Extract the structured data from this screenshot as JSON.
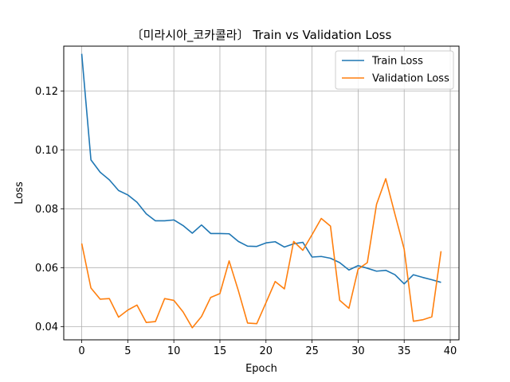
{
  "chart_data": {
    "type": "line",
    "title": "〔미라시아_코카콜라〕 Train vs Validation Loss",
    "xlabel": "Epoch",
    "ylabel": "Loss",
    "xlim": [
      -1.95,
      40.95
    ],
    "ylim": [
      0.0355,
      0.1352
    ],
    "x_ticks": [
      0,
      5,
      10,
      15,
      20,
      25,
      30,
      35,
      40
    ],
    "y_ticks": [
      0.04,
      0.06,
      0.08,
      0.1,
      0.12
    ],
    "y_tick_labels": [
      "0.04",
      "0.06",
      "0.08",
      "0.10",
      "0.12"
    ],
    "grid": true,
    "legend_position": "top-right",
    "x": [
      0,
      1,
      2,
      3,
      4,
      5,
      6,
      7,
      8,
      9,
      10,
      11,
      12,
      13,
      14,
      15,
      16,
      17,
      18,
      19,
      20,
      21,
      22,
      23,
      24,
      25,
      26,
      27,
      28,
      29,
      30,
      31,
      32,
      33,
      34,
      35,
      36,
      37,
      38,
      39
    ],
    "series": [
      {
        "name": "Train Loss",
        "color": "#1f77b4",
        "values": [
          0.1326,
          0.0966,
          0.0924,
          0.0898,
          0.0862,
          0.0847,
          0.0822,
          0.0783,
          0.0759,
          0.0759,
          0.0762,
          0.0743,
          0.0717,
          0.0745,
          0.0716,
          0.0716,
          0.0715,
          0.0689,
          0.0673,
          0.0672,
          0.0684,
          0.0688,
          0.067,
          0.0681,
          0.0686,
          0.0636,
          0.0638,
          0.0632,
          0.0617,
          0.0592,
          0.0607,
          0.0598,
          0.0588,
          0.0591,
          0.0576,
          0.0545,
          0.0576,
          0.0567,
          0.0559,
          0.055
        ]
      },
      {
        "name": "Validation Loss",
        "color": "#ff7f0e",
        "values": [
          0.0682,
          0.0531,
          0.0493,
          0.0495,
          0.0432,
          0.0456,
          0.0473,
          0.0414,
          0.0417,
          0.0495,
          0.0489,
          0.045,
          0.0396,
          0.0434,
          0.0499,
          0.0512,
          0.0623,
          0.0522,
          0.0412,
          0.041,
          0.0481,
          0.0553,
          0.0528,
          0.0689,
          0.0659,
          0.0712,
          0.0767,
          0.0741,
          0.0489,
          0.0462,
          0.0595,
          0.0617,
          0.0815,
          0.0902,
          0.0781,
          0.0663,
          0.0418,
          0.0423,
          0.0433,
          0.0656
        ]
      }
    ]
  }
}
